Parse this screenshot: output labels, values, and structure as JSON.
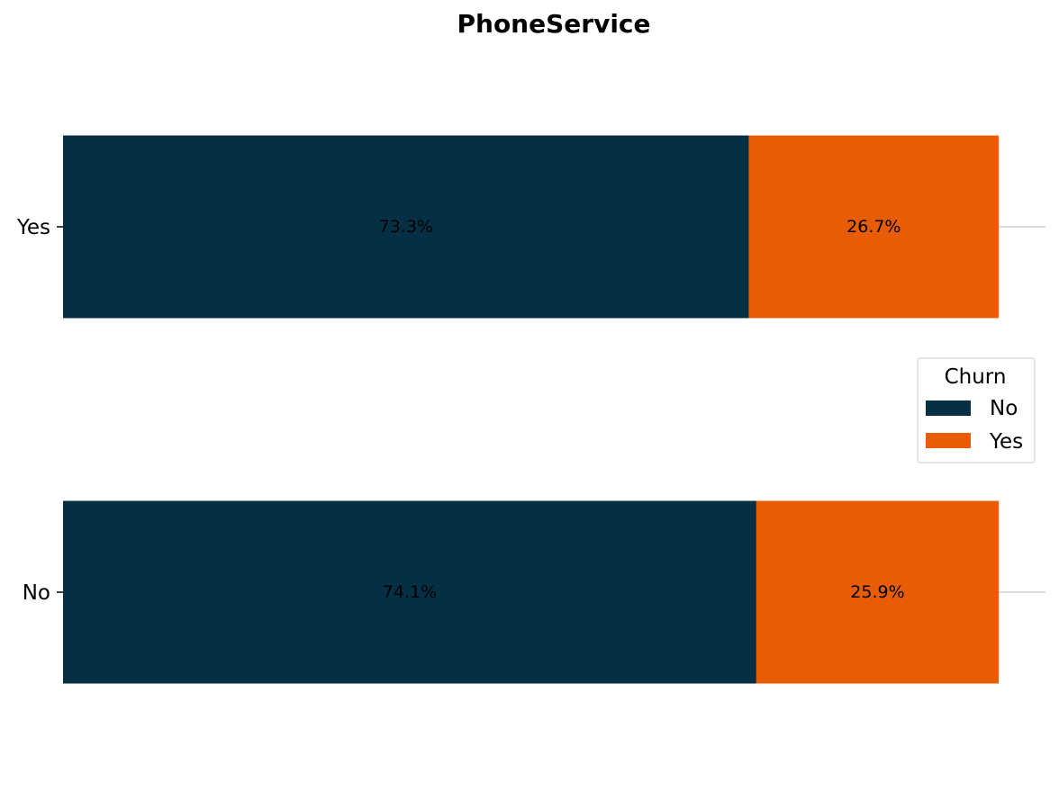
{
  "chart_data": {
    "type": "bar",
    "orientation": "horizontal",
    "stacked": true,
    "normalized": true,
    "title": "PhoneService",
    "xlabel": "",
    "ylabel": "",
    "categories": [
      "No",
      "Yes"
    ],
    "xlim": [
      0,
      100
    ],
    "series": [
      {
        "name": "No",
        "values": [
          74.1,
          73.3
        ],
        "labels": [
          "74.1%",
          "73.3%"
        ],
        "color": "#042f45"
      },
      {
        "name": "Yes",
        "values": [
          25.9,
          26.7
        ],
        "labels": [
          "25.9%",
          "26.7%"
        ],
        "color": "#e85c06"
      }
    ],
    "legend": {
      "title": "Churn",
      "position": "right",
      "entries": [
        "No",
        "Yes"
      ]
    },
    "grid": false,
    "grid_line_color": "#d0d0d0"
  }
}
